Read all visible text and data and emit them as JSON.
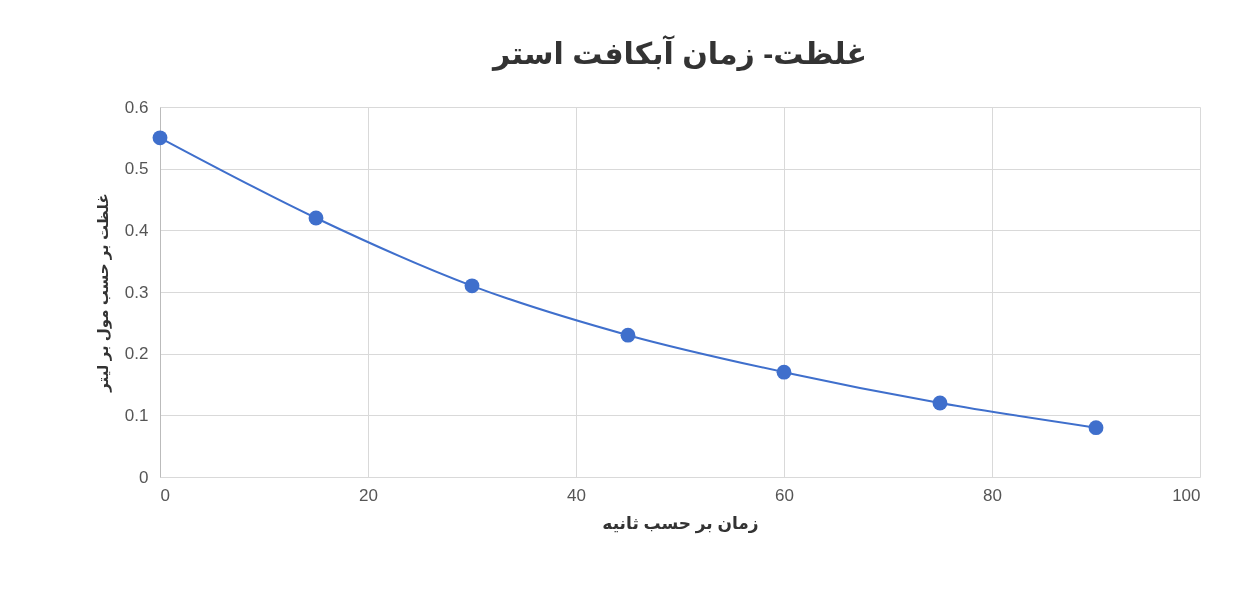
{
  "chart_data": {
    "type": "line",
    "title": "غلظت- زمان آبکافت استر",
    "xlabel": "زمان بر حسب ثانیه",
    "ylabel": "غلظت بر حسب مول بر لیتر",
    "x": [
      0,
      15,
      30,
      45,
      60,
      75,
      90
    ],
    "series": [
      {
        "color": "#3f6fcc",
        "values": [
          0.55,
          0.42,
          0.31,
          0.23,
          0.17,
          0.12,
          0.08
        ]
      }
    ],
    "xlim": [
      0,
      100
    ],
    "xticks": [
      0,
      20,
      40,
      60,
      80,
      100
    ],
    "ylim": [
      0,
      0.6
    ],
    "yticks": [
      0,
      0.1,
      0.2,
      0.3,
      0.4,
      0.5,
      0.6
    ],
    "grid": true,
    "marker": "circle",
    "line_style": "solid",
    "legend": false
  }
}
